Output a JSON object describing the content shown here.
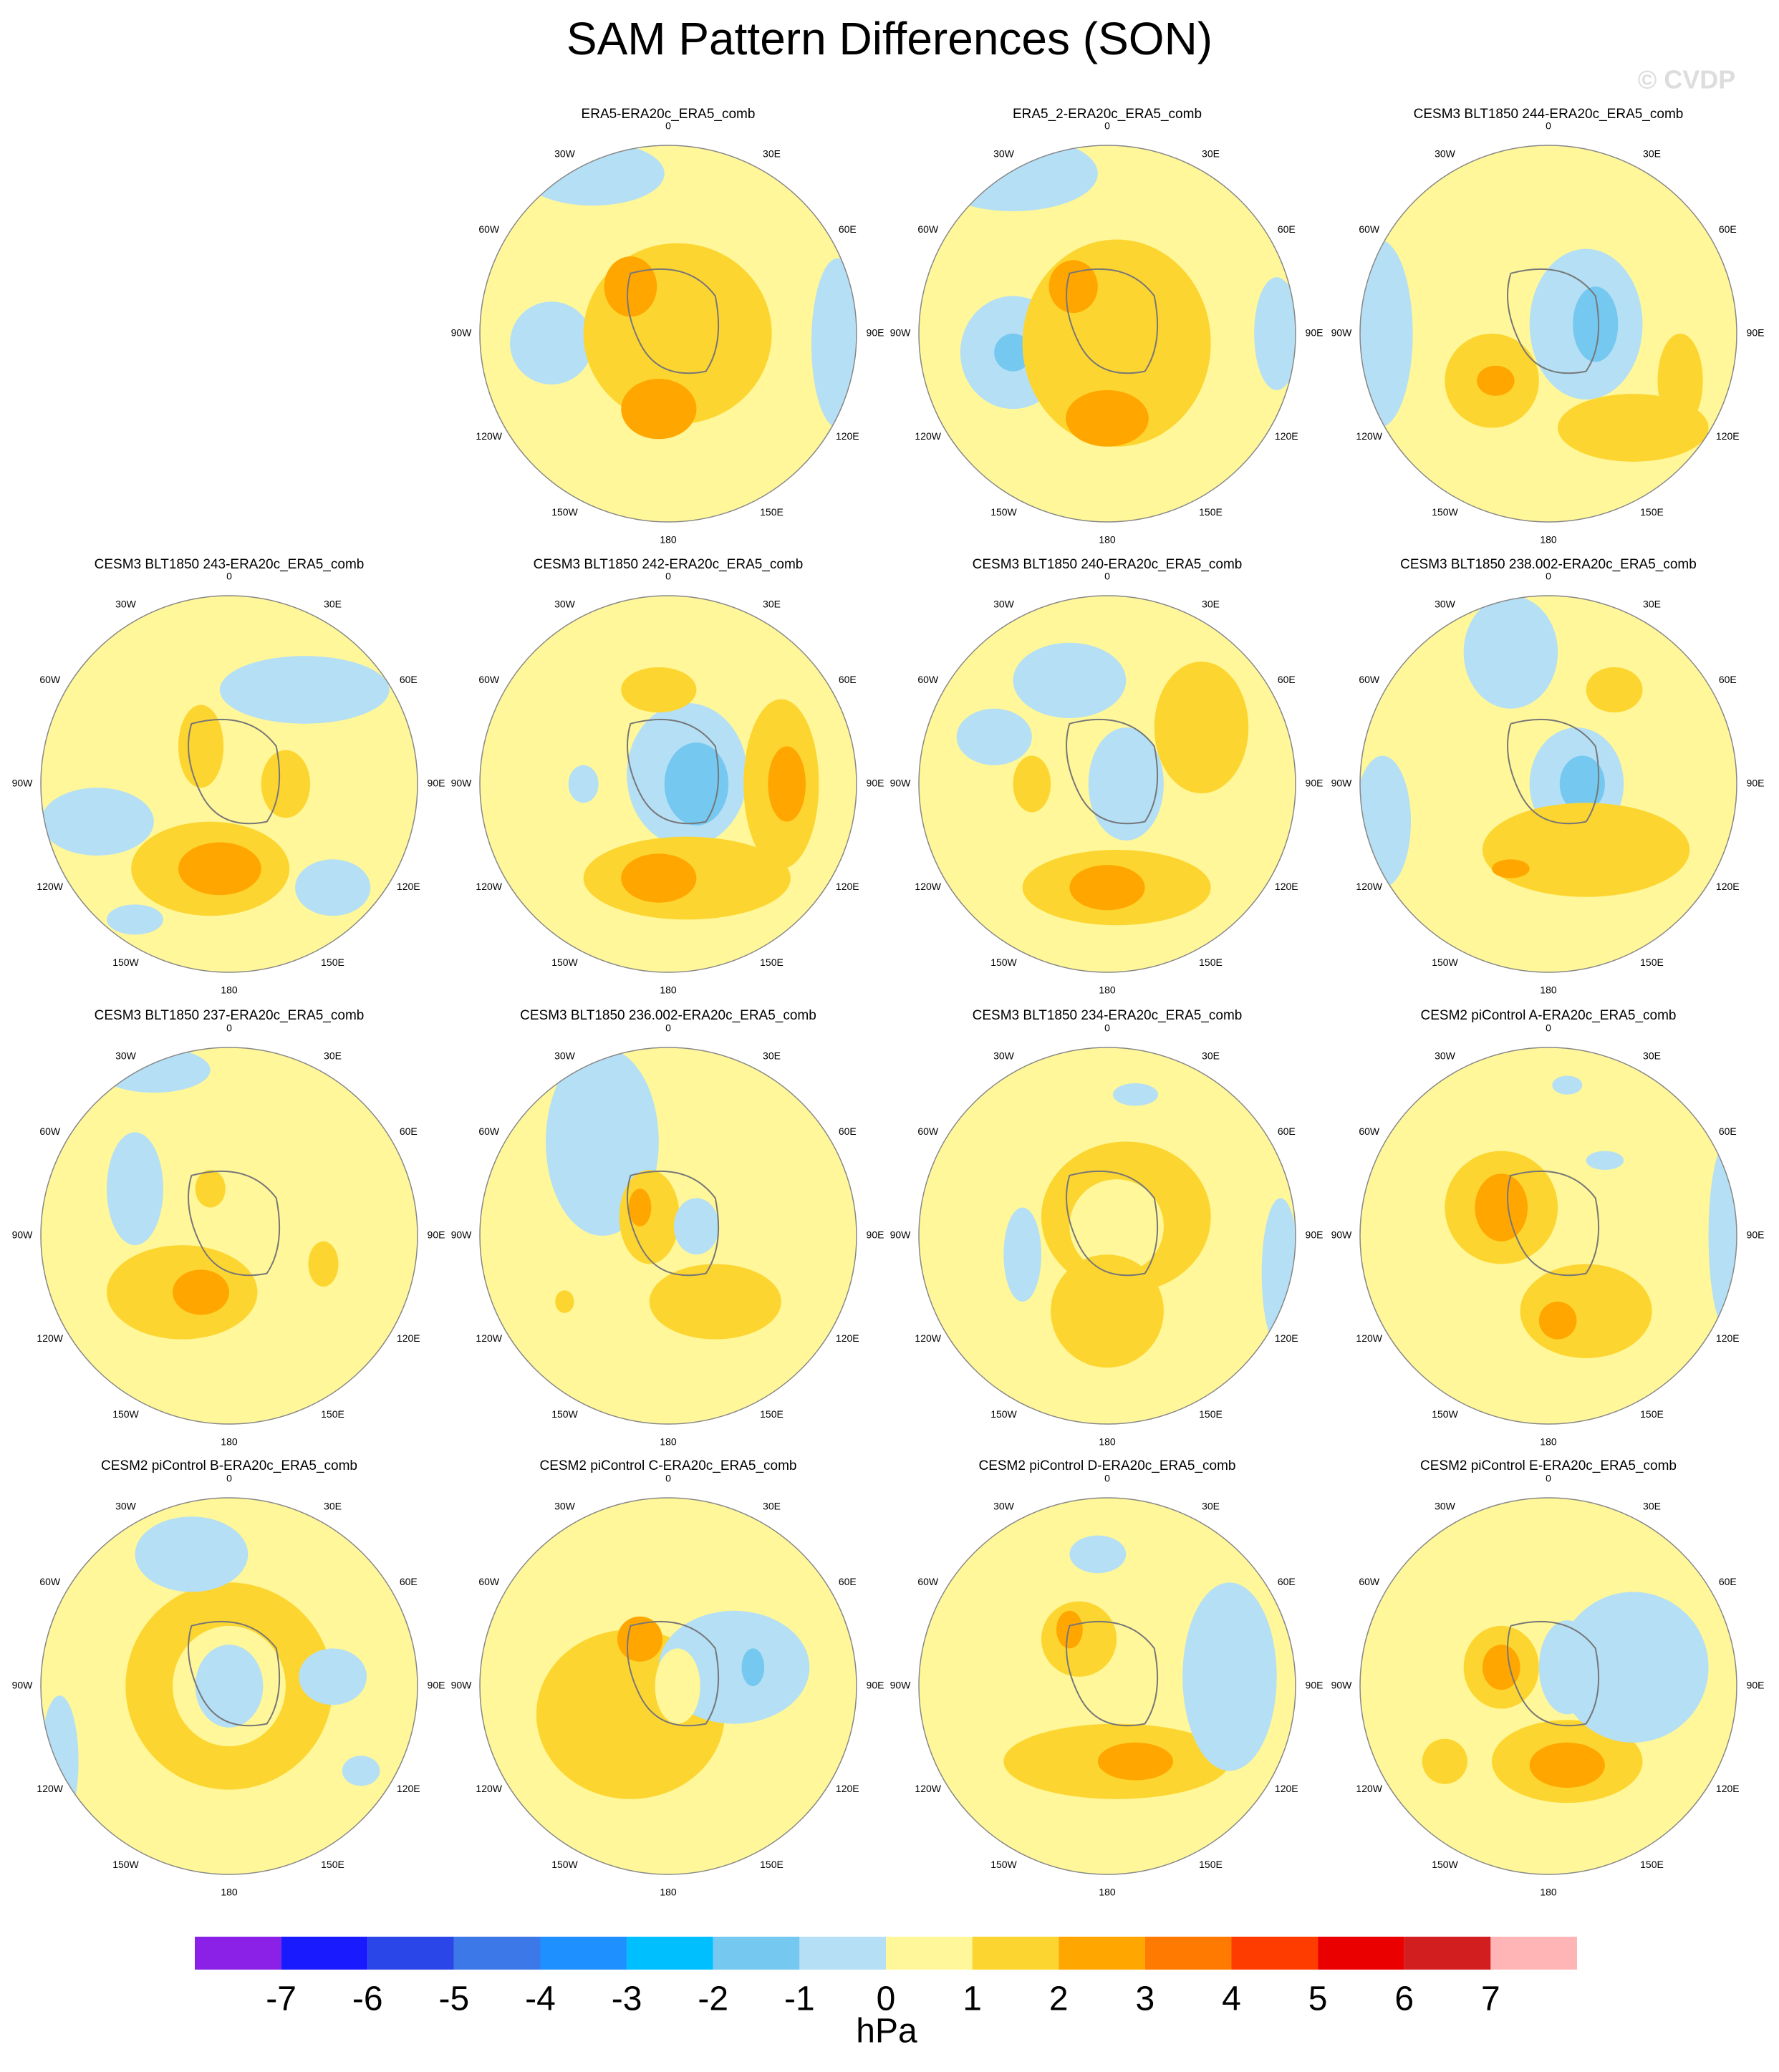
{
  "title": "SAM Pattern Differences (SON)",
  "watermark": "© CVDP",
  "panels": [
    "ERA5-ERA20c_ERA5_comb",
    "ERA5_2-ERA20c_ERA5_comb",
    "CESM3 BLT1850 244-ERA20c_ERA5_comb",
    "CESM3 BLT1850 243-ERA20c_ERA5_comb",
    "CESM3 BLT1850 242-ERA20c_ERA5_comb",
    "CESM3 BLT1850 240-ERA20c_ERA5_comb",
    "CESM3 BLT1850 238.002-ERA20c_ERA5_comb",
    "CESM3 BLT1850 237-ERA20c_ERA5_comb",
    "CESM3 BLT1850 236.002-ERA20c_ERA5_comb",
    "CESM3 BLT1850 234-ERA20c_ERA5_comb",
    "CESM2 piControl A-ERA20c_ERA5_comb",
    "CESM2 piControl B-ERA20c_ERA5_comb",
    "CESM2 piControl C-ERA20c_ERA5_comb",
    "CESM2 piControl D-ERA20c_ERA5_comb",
    "CESM2 piControl E-ERA20c_ERA5_comb"
  ],
  "lon_labels": [
    "0",
    "30E",
    "60E",
    "90E",
    "120E",
    "150E",
    "180",
    "150W",
    "120W",
    "90W",
    "60W",
    "30W"
  ],
  "colorbar": {
    "levels": [
      -7,
      -6,
      -5,
      -4,
      -3,
      -2,
      -1,
      0,
      1,
      2,
      3,
      4,
      5,
      6,
      7
    ],
    "colors": [
      "#8B21E6",
      "#1A1AFF",
      "#2A46E8",
      "#3C78E8",
      "#1E90FF",
      "#00BFFF",
      "#75C8F0",
      "#B4DFF5",
      "#FFF799",
      "#FDD530",
      "#FFA600",
      "#FF7A00",
      "#FF3C00",
      "#EB0000",
      "#D21E1E",
      "#FFB5B5"
    ],
    "unit": "hPa"
  }
}
